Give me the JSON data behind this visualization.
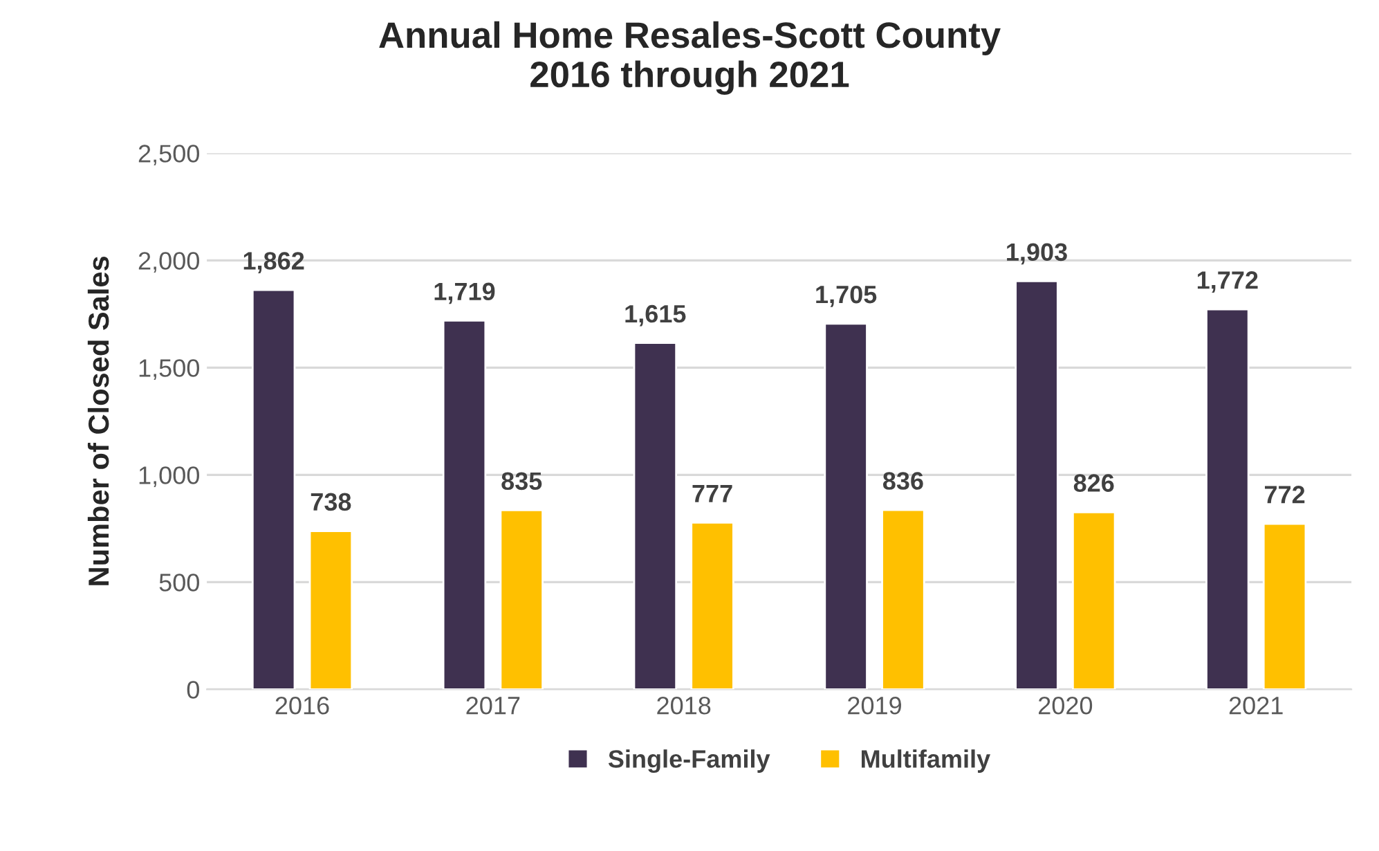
{
  "chart_data": {
    "type": "bar",
    "title": "Annual Home Resales-Scott County\n2016 through 2021",
    "ylabel": "Number of Closed Sales",
    "categories": [
      "2016",
      "2017",
      "2018",
      "2019",
      "2020",
      "2021"
    ],
    "series": [
      {
        "name": "Single-Family",
        "color": "#3f3150",
        "values": [
          1862,
          1719,
          1615,
          1705,
          1903,
          1772
        ],
        "value_labels": [
          "1,862",
          "1,719",
          "1,615",
          "1,705",
          "1,903",
          "1,772"
        ]
      },
      {
        "name": "Multifamily",
        "color": "#ffc000",
        "values": [
          738,
          835,
          777,
          836,
          826,
          772
        ],
        "value_labels": [
          "738",
          "835",
          "777",
          "836",
          "826",
          "772"
        ]
      }
    ],
    "ylim": [
      0,
      2500
    ],
    "yticks": [
      {
        "value": 0,
        "label": "0"
      },
      {
        "value": 500,
        "label": "500"
      },
      {
        "value": 1000,
        "label": "1,000"
      },
      {
        "value": 1500,
        "label": "1,500"
      },
      {
        "value": 2000,
        "label": "2,000"
      },
      {
        "value": 2500,
        "label": "2,500"
      }
    ],
    "grid": "y",
    "legend": "bottom"
  }
}
